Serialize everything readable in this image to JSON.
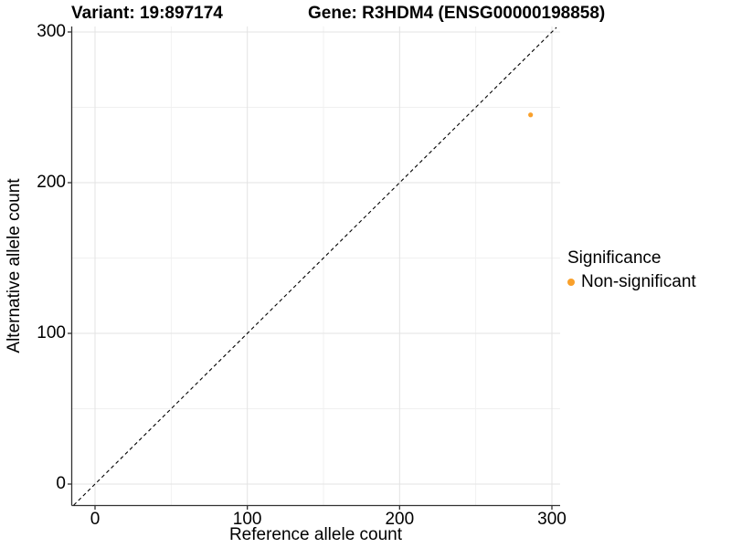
{
  "title": {
    "left": "Variant: 19:897174",
    "right": "Gene: R3HDM4 (ENSG00000198858)"
  },
  "chart_data": {
    "type": "scatter",
    "title": "Variant: 19:897174   Gene: R3HDM4 (ENSG00000198858)",
    "xlabel": "Reference allele count",
    "ylabel": "Alternative allele count",
    "xlim": [
      -15,
      305
    ],
    "ylim": [
      -14,
      303
    ],
    "x_ticks": [
      0,
      100,
      200,
      300
    ],
    "y_ticks": [
      0,
      100,
      200,
      300
    ],
    "grid": "major and minor gridlines, light gray on white",
    "identity_line": {
      "style": "dashed",
      "equation": "y = x",
      "color": "#000000"
    },
    "series": [
      {
        "name": "Non-significant",
        "color": "#F9A02B",
        "points": [
          [
            286,
            245
          ]
        ]
      }
    ],
    "legend": {
      "title": "Significance",
      "position": "right",
      "entries": [
        {
          "label": "Non-significant",
          "color": "#F9A02B"
        }
      ]
    }
  },
  "colors": {
    "background": "#ffffff",
    "grid_major": "#e3e3e3",
    "grid_minor": "#f0f0f0",
    "axis_line": "#333333",
    "point": "#F9A02B"
  }
}
